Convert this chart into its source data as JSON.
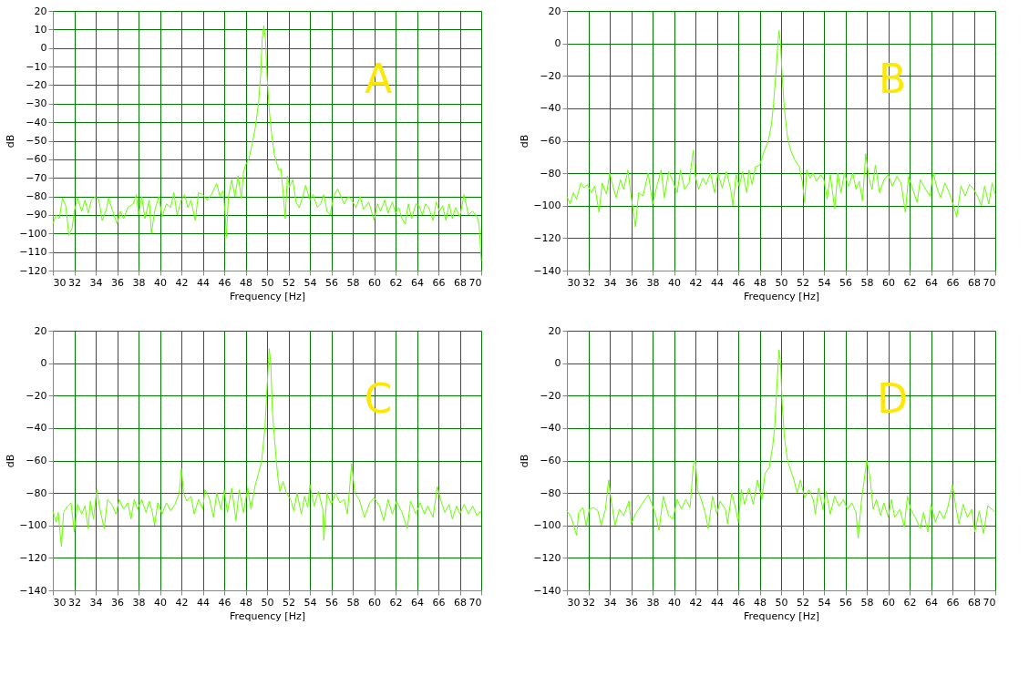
{
  "chart_data": [
    {
      "type": "line",
      "xlabel": "Frequency [Hz]",
      "ylabel": "dB",
      "annotations": [
        "A"
      ],
      "xlim": [
        30,
        70
      ],
      "ylim": [
        -120,
        20
      ],
      "xticks": [
        30,
        32,
        34,
        36,
        38,
        40,
        42,
        44,
        46,
        48,
        50,
        52,
        54,
        56,
        58,
        60,
        62,
        64,
        66,
        68,
        70
      ],
      "yticks": [
        -120,
        -110,
        -100,
        -90,
        -80,
        -70,
        -60,
        -50,
        -40,
        -30,
        -20,
        -10,
        0,
        10,
        20
      ],
      "grid": true,
      "series": [
        {
          "color": "#66ff00",
          "x": [
            30,
            30.3,
            30.6,
            30.9,
            31.2,
            31.5,
            31.8,
            32,
            32.3,
            32.7,
            33,
            33.3,
            33.6,
            34,
            34.3,
            34.6,
            35,
            35.2,
            35.6,
            36,
            36.3,
            36.6,
            37,
            37.5,
            37.8,
            38,
            38.3,
            38.6,
            39,
            39.2,
            39.5,
            39.9,
            40.2,
            40.6,
            41,
            41.3,
            41.6,
            42,
            42.3,
            42.6,
            42.9,
            43.3,
            43.6,
            44,
            44.4,
            44.8,
            45.3,
            45.6,
            45.9,
            46.1,
            46.2,
            46.4,
            46.7,
            47,
            47.3,
            47.6,
            47.8,
            48,
            48.3,
            48.6,
            48.9,
            49.2,
            49.4,
            49.55,
            49.7,
            49.85,
            50,
            50.2,
            50.4,
            50.7,
            50.9,
            51.1,
            51.3,
            51.5,
            51.7,
            51.9,
            52.1,
            52.4,
            52.7,
            53,
            53.4,
            53.6,
            54,
            54.3,
            54.7,
            55,
            55.3,
            55.6,
            55.9,
            56.2,
            56.6,
            56.9,
            57.2,
            57.6,
            57.9,
            58.3,
            58.7,
            59,
            59.5,
            60,
            60.3,
            60.6,
            61,
            61.3,
            61.7,
            62,
            62.3,
            62.6,
            62.9,
            63.2,
            63.5,
            63.9,
            64.2,
            64.5,
            64.8,
            65.1,
            65.5,
            65.8,
            66.1,
            66.4,
            66.7,
            67,
            67.3,
            67.6,
            68,
            68.4,
            68.8,
            69.2,
            69.6,
            69.8,
            70
          ],
          "values": [
            -95,
            -90,
            -92,
            -81,
            -85,
            -101,
            -97,
            -88,
            -81,
            -88,
            -82,
            -89,
            -82,
            -80,
            -82,
            -93,
            -87,
            -81,
            -88,
            -95,
            -88,
            -92,
            -86,
            -84,
            -79,
            -90,
            -80,
            -92,
            -82,
            -100,
            -88,
            -80,
            -91,
            -84,
            -86,
            -78,
            -90,
            -82,
            -79,
            -86,
            -82,
            -93,
            -78,
            -79,
            -82,
            -79,
            -73,
            -80,
            -77,
            -90,
            -102,
            -80,
            -71,
            -80,
            -69,
            -81,
            -67,
            -63,
            -60,
            -52,
            -43,
            -30,
            -15,
            5,
            12,
            5,
            -15,
            -33,
            -45,
            -58,
            -62,
            -66,
            -65,
            -78,
            -92,
            -69,
            -75,
            -71,
            -83,
            -86,
            -79,
            -74,
            -82,
            -79,
            -86,
            -84,
            -79,
            -88,
            -90,
            -80,
            -76,
            -80,
            -84,
            -80,
            -82,
            -86,
            -80,
            -87,
            -83,
            -93,
            -84,
            -88,
            -82,
            -89,
            -83,
            -89,
            -86,
            -92,
            -95,
            -84,
            -92,
            -84,
            -85,
            -90,
            -84,
            -86,
            -93,
            -83,
            -88,
            -85,
            -93,
            -84,
            -92,
            -86,
            -91,
            -79,
            -90,
            -88,
            -91,
            -95,
            -115
          ]
        }
      ]
    },
    {
      "type": "line",
      "xlabel": "Frequency [Hz]",
      "ylabel": "dB",
      "annotations": [
        "B"
      ],
      "xlim": [
        30,
        70
      ],
      "ylim": [
        -140,
        20
      ],
      "xticks": [
        30,
        32,
        34,
        36,
        38,
        40,
        42,
        44,
        46,
        48,
        50,
        52,
        54,
        56,
        58,
        60,
        62,
        64,
        66,
        68,
        70
      ],
      "yticks": [
        -140,
        -120,
        -100,
        -80,
        -60,
        -40,
        -20,
        0,
        20
      ],
      "grid": true,
      "series": [
        {
          "color": "#66ff00",
          "x": [
            30,
            30.3,
            30.6,
            30.9,
            31.3,
            31.6,
            31.9,
            32.3,
            32.6,
            33,
            33.3,
            33.7,
            34,
            34.3,
            34.6,
            35,
            35.3,
            35.7,
            36,
            36.4,
            36.7,
            37.1,
            37.6,
            38,
            38.4,
            38.8,
            39.1,
            39.5,
            39.9,
            40.3,
            40.6,
            41,
            41.4,
            41.8,
            42,
            42.3,
            42.7,
            43,
            43.4,
            43.8,
            44.1,
            44.5,
            44.9,
            45.3,
            45.5,
            45.8,
            46.1,
            46.4,
            46.8,
            47,
            47.3,
            47.6,
            48,
            48.4,
            48.8,
            49.1,
            49.3,
            49.5,
            49.7,
            49.8,
            49.95,
            50.1,
            50.3,
            50.6,
            50.9,
            51.3,
            51.7,
            52,
            52.2,
            52.4,
            52.7,
            53,
            53.3,
            53.7,
            54,
            54.3,
            54.6,
            55,
            55.3,
            55.6,
            55.9,
            56.3,
            56.7,
            57,
            57.3,
            57.6,
            57.9,
            58.2,
            58.5,
            58.8,
            59.2,
            59.6,
            60,
            60.4,
            60.8,
            61.2,
            61.6,
            61.9,
            62.3,
            62.7,
            63,
            63.5,
            63.9,
            64.2,
            64.6,
            64.9,
            65.3,
            65.7,
            66.1,
            66.4,
            66.8,
            67.2,
            67.6,
            68,
            68.4,
            68.7,
            69,
            69.4,
            69.7,
            70
          ],
          "values": [
            -94,
            -99,
            -92,
            -96,
            -86,
            -89,
            -87,
            -92,
            -88,
            -104,
            -86,
            -93,
            -80,
            -88,
            -95,
            -84,
            -90,
            -78,
            -94,
            -113,
            -92,
            -94,
            -80,
            -99,
            -88,
            -78,
            -95,
            -79,
            -85,
            -92,
            -78,
            -90,
            -86,
            -66,
            -82,
            -90,
            -83,
            -87,
            -80,
            -92,
            -80,
            -89,
            -79,
            -90,
            -100,
            -81,
            -88,
            -79,
            -92,
            -78,
            -87,
            -76,
            -75,
            -67,
            -60,
            -50,
            -37,
            -20,
            0,
            8,
            0,
            -20,
            -40,
            -58,
            -66,
            -72,
            -76,
            -86,
            -98,
            -78,
            -83,
            -80,
            -85,
            -81,
            -84,
            -96,
            -81,
            -102,
            -80,
            -92,
            -80,
            -88,
            -80,
            -90,
            -85,
            -97,
            -68,
            -83,
            -90,
            -75,
            -92,
            -84,
            -81,
            -88,
            -82,
            -86,
            -104,
            -82,
            -90,
            -98,
            -84,
            -90,
            -94,
            -80,
            -90,
            -95,
            -86,
            -92,
            -100,
            -107,
            -88,
            -94,
            -87,
            -90,
            -95,
            -100,
            -88,
            -99,
            -86,
            -93
          ]
        }
      ]
    },
    {
      "type": "line",
      "xlabel": "Frequency [Hz]",
      "ylabel": "dB",
      "annotations": [
        "C"
      ],
      "xlim": [
        30,
        70
      ],
      "ylim": [
        -140,
        20
      ],
      "xticks": [
        30,
        32,
        34,
        36,
        38,
        40,
        42,
        44,
        46,
        48,
        50,
        52,
        54,
        56,
        58,
        60,
        62,
        64,
        66,
        68,
        70
      ],
      "yticks": [
        -140,
        -120,
        -100,
        -80,
        -60,
        -40,
        -20,
        0,
        20
      ],
      "grid": true,
      "series": [
        {
          "color": "#66ff00",
          "x": [
            30,
            30.3,
            30.5,
            30.8,
            31,
            31.4,
            31.7,
            32,
            32.3,
            32.7,
            33,
            33.3,
            33.5,
            33.8,
            34.1,
            34.4,
            34.8,
            35.1,
            35.5,
            35.9,
            36.2,
            36.6,
            37,
            37.3,
            37.6,
            37.9,
            38.3,
            38.7,
            39,
            39.3,
            39.5,
            39.8,
            40.2,
            40.6,
            41,
            41.4,
            41.8,
            42,
            42.2,
            42.5,
            42.9,
            43.2,
            43.6,
            44,
            44.2,
            44.6,
            45,
            45.3,
            45.7,
            46,
            46.3,
            46.7,
            47.1,
            47.4,
            47.8,
            48.2,
            48.5,
            48.9,
            49.2,
            49.5,
            49.8,
            50,
            50.2,
            50.35,
            50.5,
            50.8,
            51,
            51.2,
            51.5,
            51.8,
            52.2,
            52.5,
            52.8,
            53.2,
            53.5,
            53.8,
            54,
            54.4,
            54.8,
            55.2,
            55.3,
            55.6,
            56,
            56.4,
            56.8,
            57.2,
            57.5,
            57.9,
            58.2,
            58.6,
            59.1,
            59.6,
            60,
            60.5,
            60.9,
            61.3,
            61.7,
            62.1,
            62.6,
            63.1,
            63.4,
            63.9,
            64.3,
            64.7,
            65,
            65.5,
            65.9,
            66.2,
            66.6,
            67,
            67.3,
            67.7,
            68,
            68.4,
            68.8,
            69.2,
            69.6,
            70
          ],
          "values": [
            -91,
            -98,
            -92,
            -113,
            -92,
            -88,
            -86,
            -104,
            -87,
            -93,
            -88,
            -102,
            -85,
            -96,
            -78,
            -90,
            -102,
            -84,
            -87,
            -93,
            -84,
            -90,
            -86,
            -96,
            -84,
            -90,
            -84,
            -92,
            -85,
            -92,
            -100,
            -86,
            -93,
            -86,
            -91,
            -87,
            -80,
            -65,
            -80,
            -85,
            -82,
            -93,
            -84,
            -90,
            -78,
            -83,
            -95,
            -80,
            -90,
            -78,
            -92,
            -77,
            -97,
            -78,
            -92,
            -77,
            -90,
            -75,
            -68,
            -60,
            -40,
            -15,
            9,
            0,
            -30,
            -55,
            -70,
            -79,
            -73,
            -80,
            -84,
            -91,
            -80,
            -93,
            -82,
            -89,
            -75,
            -88,
            -79,
            -90,
            -109,
            -80,
            -87,
            -80,
            -86,
            -84,
            -93,
            -62,
            -80,
            -84,
            -95,
            -86,
            -83,
            -88,
            -97,
            -84,
            -93,
            -85,
            -92,
            -102,
            -85,
            -93,
            -86,
            -93,
            -88,
            -95,
            -76,
            -84,
            -92,
            -87,
            -96,
            -88,
            -93,
            -87,
            -93,
            -88,
            -94,
            -91
          ]
        }
      ]
    },
    {
      "type": "line",
      "xlabel": "Frequency [Hz]",
      "ylabel": "dB",
      "annotations": [
        "D"
      ],
      "xlim": [
        30,
        70
      ],
      "ylim": [
        -140,
        20
      ],
      "xticks": [
        30,
        32,
        34,
        36,
        38,
        40,
        42,
        44,
        46,
        48,
        50,
        52,
        54,
        56,
        58,
        60,
        62,
        64,
        66,
        68,
        70
      ],
      "yticks": [
        -140,
        -120,
        -100,
        -80,
        -60,
        -40,
        -20,
        0,
        20
      ],
      "grid": true,
      "series": [
        {
          "color": "#66ff00",
          "x": [
            30,
            30.4,
            30.9,
            31.1,
            31.5,
            31.8,
            32.1,
            32.5,
            32.9,
            33.2,
            33.6,
            33.9,
            34.1,
            34.5,
            34.9,
            35.3,
            35.8,
            36,
            36.4,
            37,
            37.6,
            38,
            38.3,
            38.6,
            39,
            39.5,
            39.9,
            40.3,
            40.7,
            41.1,
            41.5,
            41.8,
            42,
            42.2,
            42.6,
            42.9,
            43.2,
            43.6,
            44,
            44.3,
            44.8,
            45,
            45.4,
            45.8,
            46,
            46.3,
            46.6,
            47,
            47.4,
            47.8,
            48.2,
            48.5,
            48.9,
            49.2,
            49.4,
            49.6,
            49.8,
            49.95,
            50.1,
            50.3,
            50.6,
            50.9,
            51.2,
            51.5,
            51.8,
            52.2,
            52.6,
            53,
            53.2,
            53.5,
            53.9,
            54.2,
            54.6,
            55,
            55.4,
            55.8,
            56.2,
            56.6,
            57,
            57.2,
            57.5,
            58,
            58.3,
            58.6,
            58.9,
            59.3,
            59.6,
            60,
            60.3,
            60.6,
            61.1,
            61.5,
            61.8,
            62.1,
            62.6,
            63,
            63.3,
            63.7,
            64,
            64.4,
            64.8,
            65.2,
            65.6,
            66,
            66.3,
            66.6,
            67,
            67.4,
            67.8,
            68.1,
            68.5,
            68.9,
            69.3,
            69.7,
            70
          ],
          "values": [
            -91,
            -95,
            -106,
            -92,
            -89,
            -100,
            -90,
            -89,
            -91,
            -100,
            -90,
            -72,
            -83,
            -100,
            -90,
            -94,
            -85,
            -99,
            -93,
            -87,
            -81,
            -88,
            -94,
            -103,
            -82,
            -94,
            -96,
            -84,
            -90,
            -84,
            -89,
            -63,
            -60,
            -78,
            -85,
            -92,
            -102,
            -82,
            -93,
            -85,
            -90,
            -99,
            -80,
            -91,
            -98,
            -78,
            -87,
            -77,
            -87,
            -72,
            -84,
            -68,
            -64,
            -52,
            -40,
            -15,
            8,
            0,
            -25,
            -45,
            -60,
            -66,
            -72,
            -80,
            -72,
            -83,
            -78,
            -84,
            -93,
            -77,
            -90,
            -79,
            -93,
            -82,
            -88,
            -84,
            -90,
            -86,
            -92,
            -108,
            -85,
            -60,
            -70,
            -90,
            -84,
            -94,
            -86,
            -95,
            -84,
            -95,
            -90,
            -101,
            -82,
            -90,
            -96,
            -102,
            -92,
            -104,
            -87,
            -98,
            -91,
            -96,
            -88,
            -75,
            -88,
            -99,
            -87,
            -95,
            -90,
            -104,
            -91,
            -105,
            -88,
            -90,
            -92
          ]
        }
      ]
    }
  ]
}
